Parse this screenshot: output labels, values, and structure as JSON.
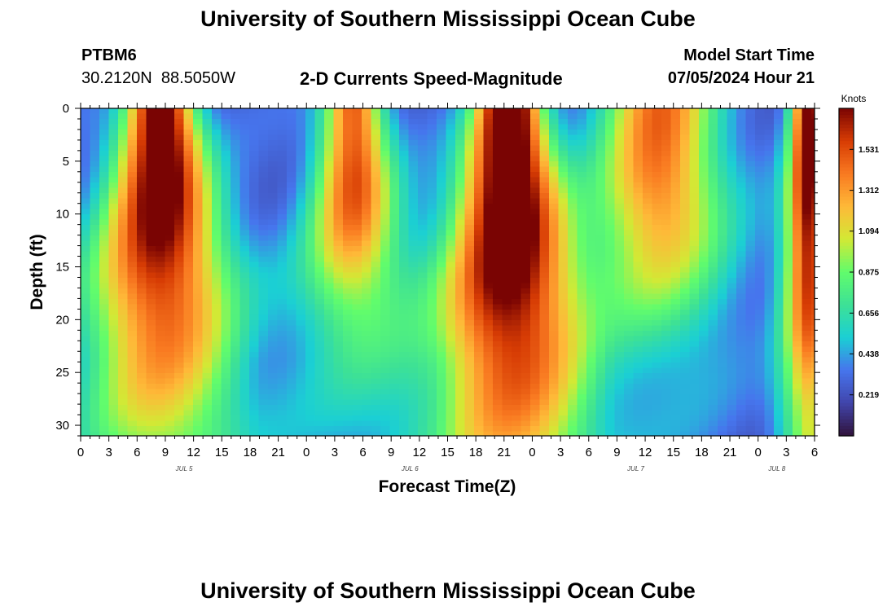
{
  "title": "University of Southern Mississippi Ocean Cube",
  "footer_title": "University of Southern Mississippi Ocean Cube",
  "station": {
    "id": "PTBM6",
    "lat": "30.2120N",
    "lon": "88.5050W"
  },
  "model": {
    "label": "Model Start Time",
    "start": "07/05/2024 Hour 21"
  },
  "chart_data": {
    "type": "heatmap",
    "title": "2-D Currents Speed-Magnitude",
    "xlabel": "Forecast Time(Z)",
    "ylabel": "Depth (ft)",
    "colorbar_label": "Knots",
    "x_ticks": [
      "0",
      "3",
      "6",
      "9",
      "12",
      "15",
      "18",
      "21",
      "0",
      "3",
      "6",
      "9",
      "12",
      "15",
      "18",
      "21",
      "0",
      "3",
      "6",
      "9",
      "12",
      "15",
      "18",
      "21",
      "0",
      "3",
      "6"
    ],
    "x_range_hours": [
      0,
      78
    ],
    "date_labels": [
      {
        "text": "JUL 5",
        "hour": 11
      },
      {
        "text": "JUL 6",
        "hour": 35
      },
      {
        "text": "JUL 7",
        "hour": 59
      },
      {
        "text": "JUL 8",
        "hour": 74
      }
    ],
    "y_ticks": [
      0,
      5,
      10,
      15,
      20,
      25,
      30
    ],
    "ylim": [
      0,
      31
    ],
    "y_inverted": true,
    "colorbar_ticks": [
      1.531,
      1.312,
      1.094,
      0.875,
      0.656,
      0.438,
      0.219
    ],
    "colorbar_range": [
      0,
      1.75
    ],
    "peaks": [
      {
        "time_hours": 8.5,
        "surface_speed": 1.7,
        "width_hours": 3.6,
        "decay_depth_ft": 34,
        "widen_per_ft": 0.24,
        "depth_center_ft": 0
      },
      {
        "time_hours": 29.0,
        "surface_speed": 1.25,
        "width_hours": 3.2,
        "decay_depth_ft": 17,
        "widen_per_ft": 0.15,
        "depth_center_ft": 5
      },
      {
        "time_hours": 45.5,
        "surface_speed": 1.8,
        "width_hours": 3.6,
        "decay_depth_ft": 36,
        "widen_per_ft": 0.22,
        "depth_center_ft": 3
      },
      {
        "time_hours": 61.5,
        "surface_speed": 1.15,
        "width_hours": 6.0,
        "decay_depth_ft": 16,
        "widen_per_ft": 0.1,
        "depth_center_ft": 5
      },
      {
        "time_hours": 77.5,
        "surface_speed": 1.6,
        "width_hours": 2.0,
        "decay_depth_ft": 40,
        "widen_per_ft": 0.05,
        "depth_center_ft": 0
      }
    ]
  }
}
